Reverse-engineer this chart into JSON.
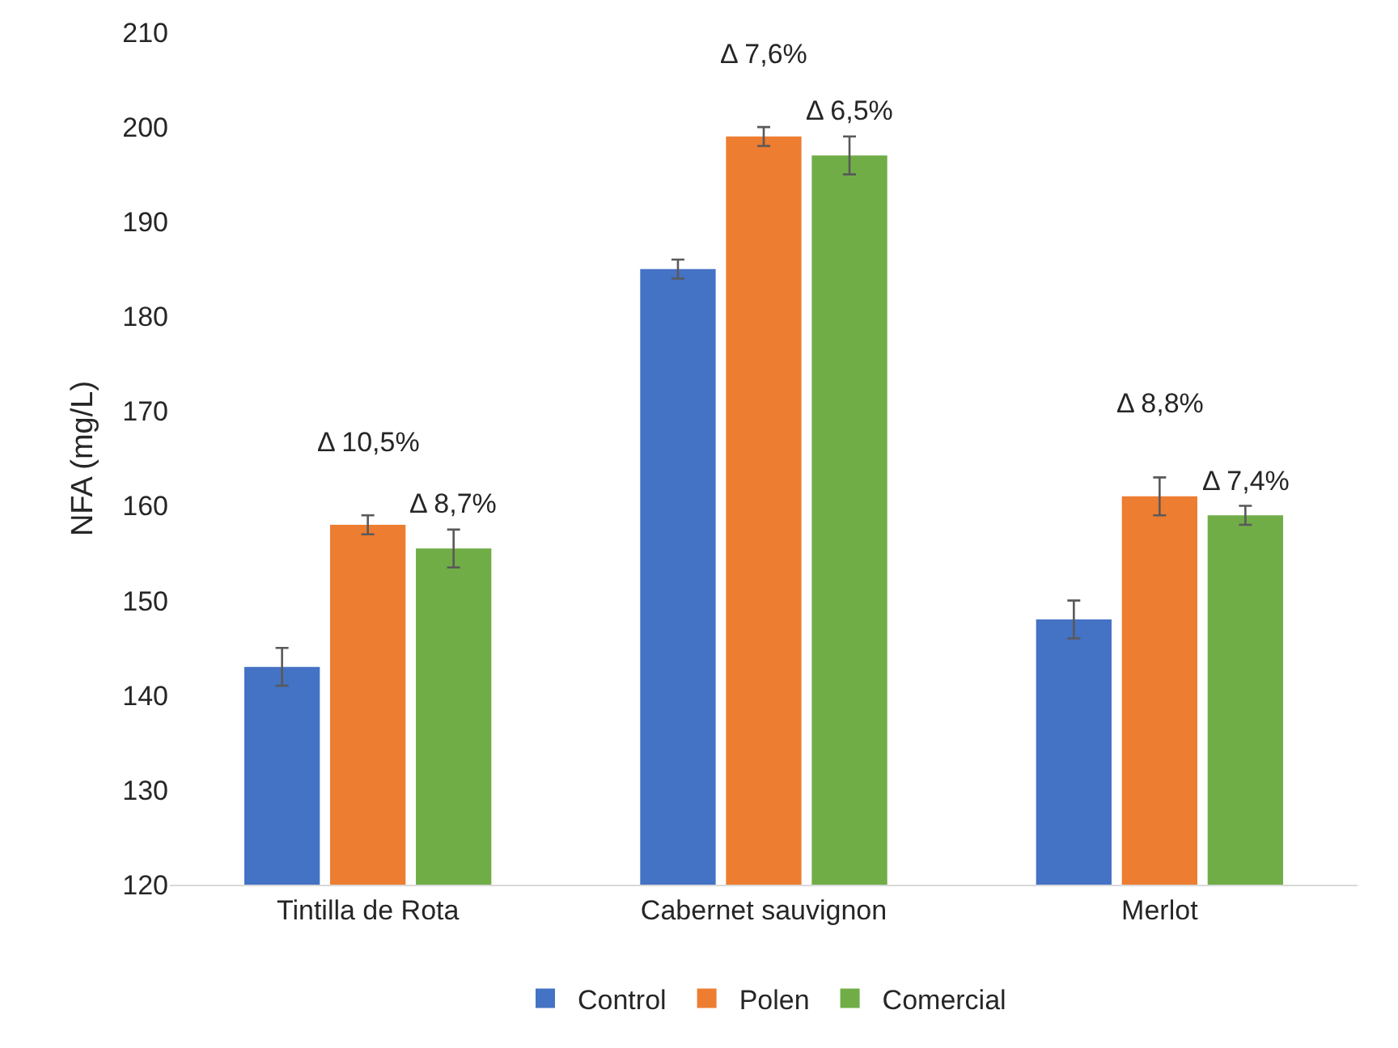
{
  "chart_data": {
    "type": "bar",
    "ylabel": "NFA (mg/L)",
    "categories": [
      "Tintilla de Rota",
      "Cabernet sauvignon",
      "Merlot"
    ],
    "series": [
      {
        "name": "Control",
        "color": "#4472c4",
        "values": [
          143,
          185,
          148
        ],
        "errors": [
          2,
          1,
          2
        ]
      },
      {
        "name": "Polen",
        "color": "#ed7d31",
        "values": [
          158,
          199,
          161
        ],
        "errors": [
          1,
          1,
          2
        ]
      },
      {
        "name": "Comercial",
        "color": "#70ad47",
        "values": [
          155.5,
          197,
          159
        ],
        "errors": [
          2,
          2,
          1
        ]
      }
    ],
    "ylim": [
      120,
      210
    ],
    "yticks": [
      120,
      130,
      140,
      150,
      160,
      170,
      180,
      190,
      200,
      210
    ],
    "grid": false,
    "legend": "bottom",
    "annotations": [
      {
        "text": "Δ 10,5%",
        "x": "Tintilla de Rota",
        "y": 159
      },
      {
        "text": "Δ 8,7%",
        "x": "Tintilla de Rota",
        "y": 157.5
      },
      {
        "text": "Δ 7,6%",
        "x": "Cabernet sauvignon",
        "y": 200
      },
      {
        "text": "Δ 6,5%",
        "x": "Cabernet sauvignon",
        "y": 199
      },
      {
        "text": "Δ 8,8%",
        "x": "Merlot",
        "y": 163
      },
      {
        "text": "Δ 7,4%",
        "x": "Merlot",
        "y": 160
      }
    ]
  }
}
